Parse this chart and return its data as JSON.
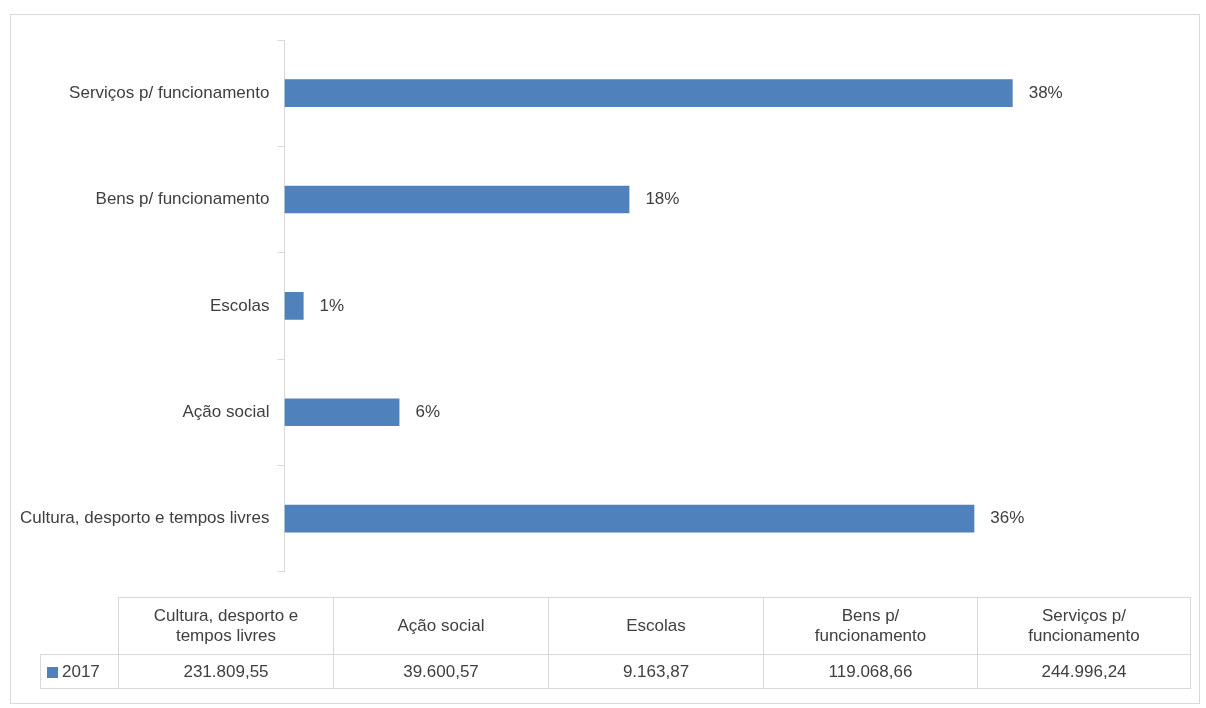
{
  "chart_data": {
    "type": "bar",
    "orientation": "horizontal",
    "categories": [
      "Serviços p/ funcionamento",
      "Bens p/ funcionamento",
      "Escolas",
      "Ação social",
      "Cultura, desporto e tempos livres"
    ],
    "series": [
      {
        "name": "2017",
        "color": "#4f81bd",
        "values": [
          38,
          18,
          1,
          6,
          36
        ],
        "value_labels": [
          "38%",
          "18%",
          "1%",
          "6%",
          "36%"
        ]
      }
    ],
    "annotations": [
      "244.996,24",
      "119.068,66",
      "9.163,87",
      "39.600,57",
      "231.809,55"
    ],
    "legend": "bottom",
    "grid": false
  }
}
